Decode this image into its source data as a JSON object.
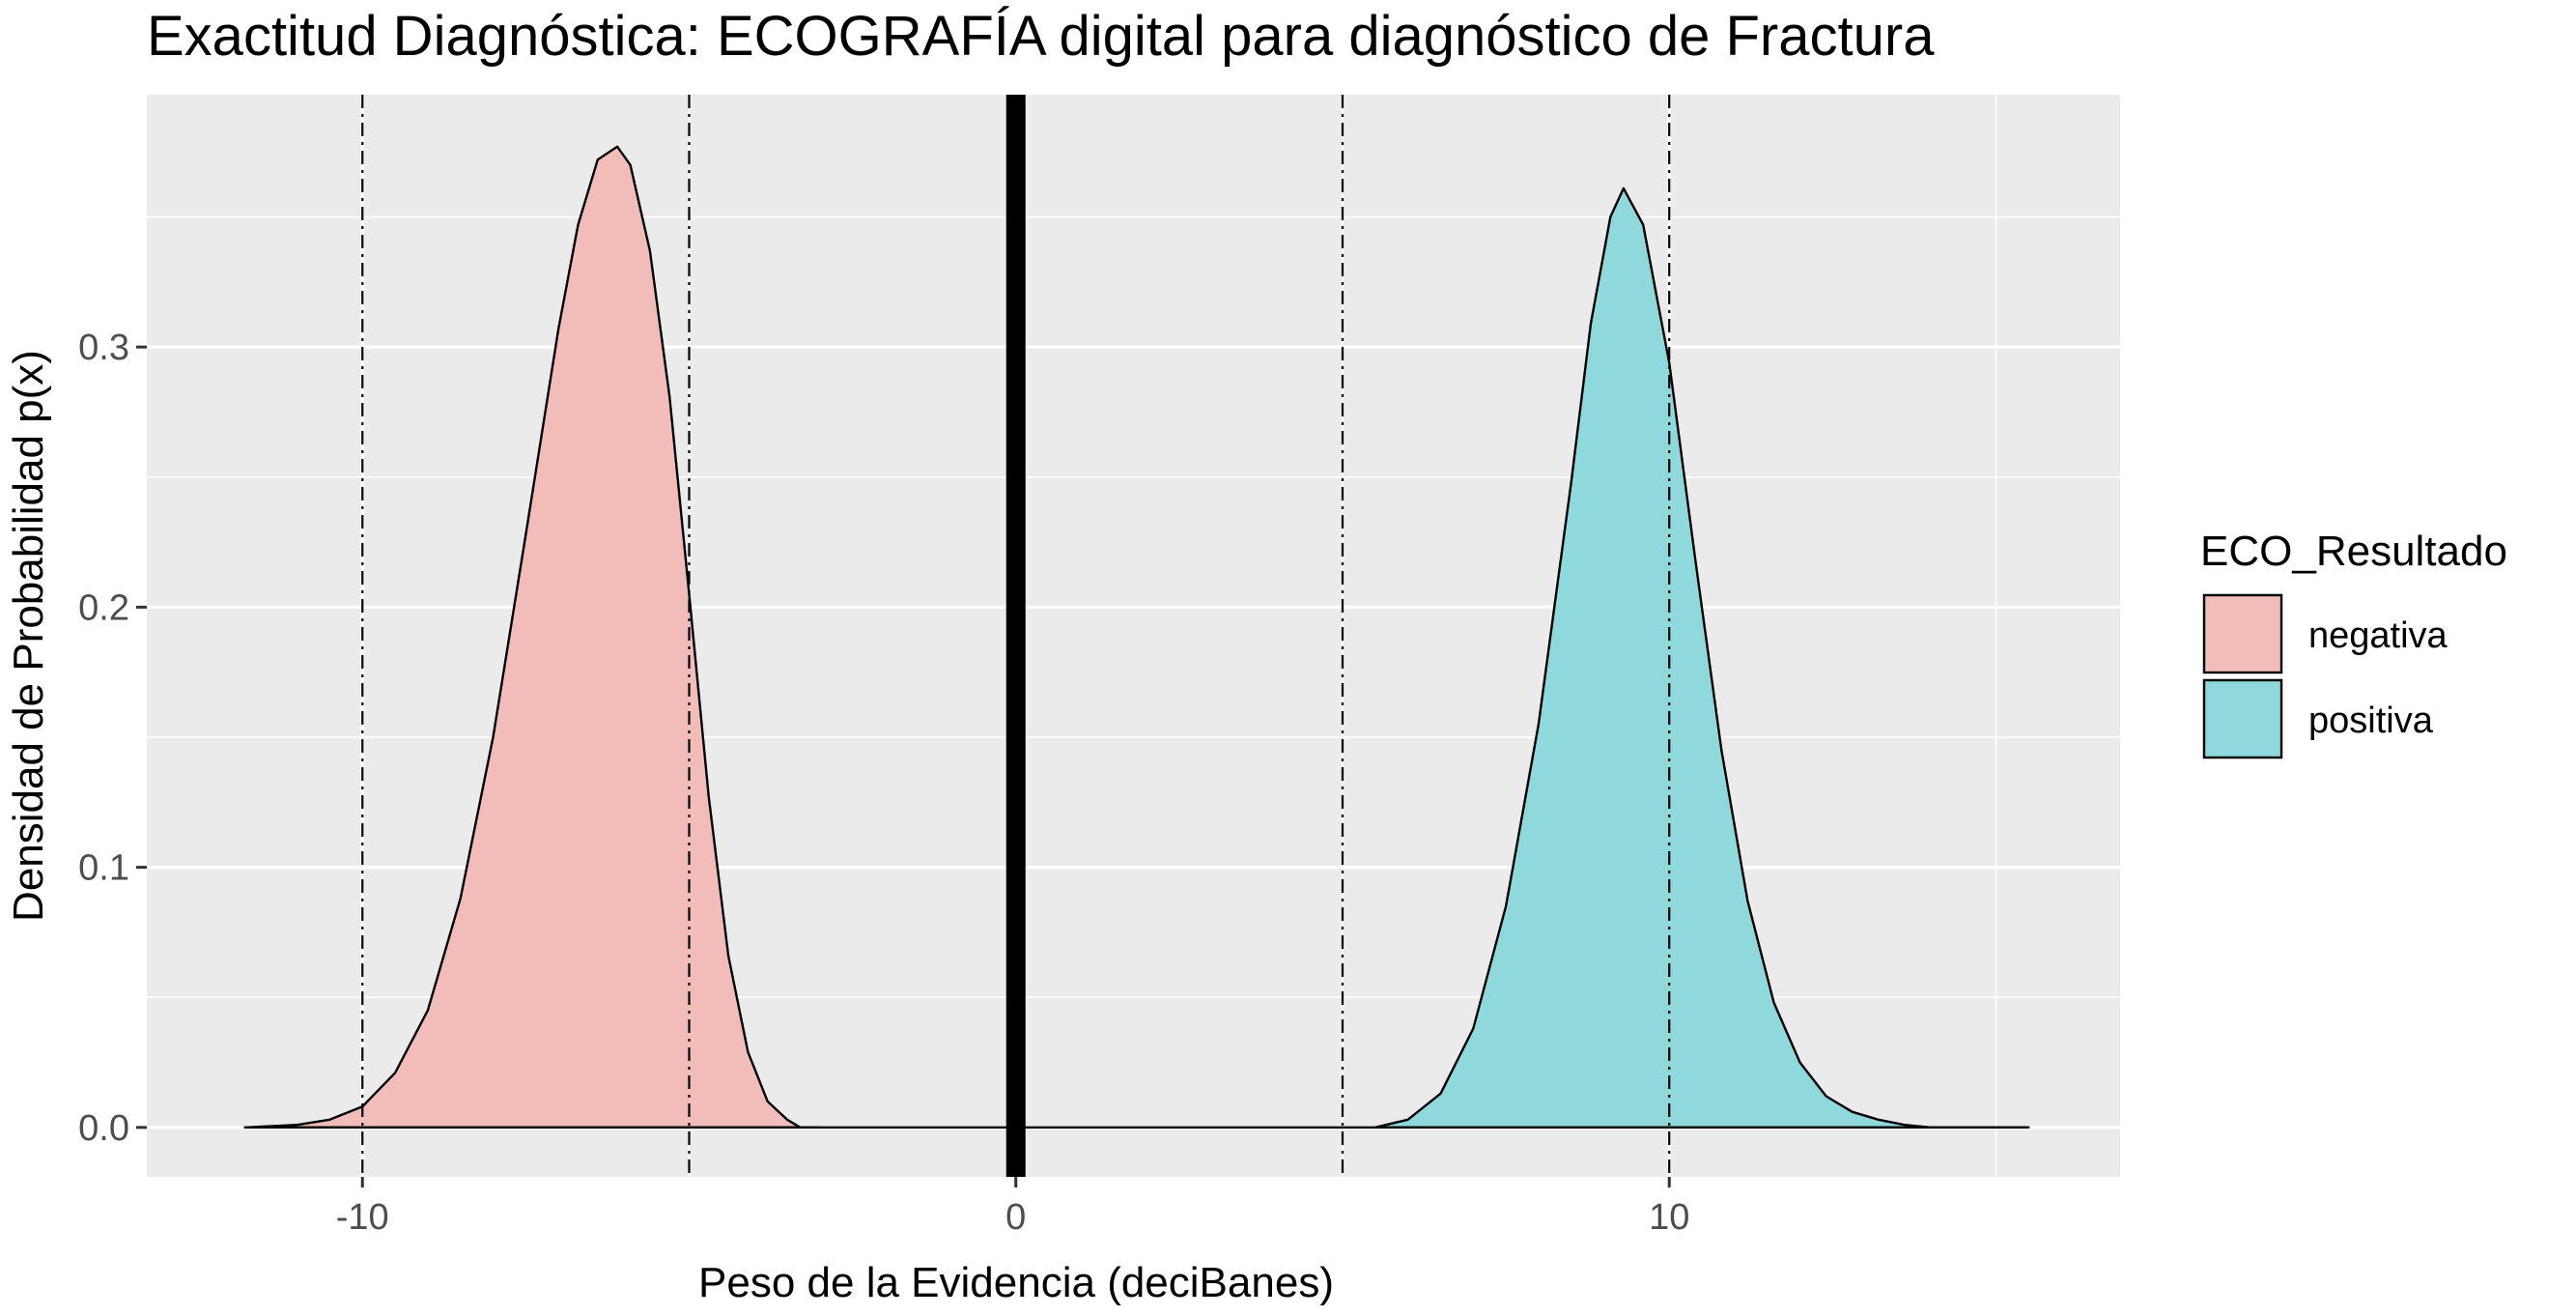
{
  "chart_data": {
    "type": "area",
    "title": "Exactitud Diagnóstica: ECOGRAFÍA digital para diagnóstico de Fractura",
    "xlabel": "Peso de la Evidencia (deciBanes)",
    "ylabel": "Densidad de Probabilidad p(x)",
    "xlim": [
      -13.3,
      16.9
    ],
    "ylim": [
      -0.019,
      0.397
    ],
    "x_ticks": [
      -10,
      0,
      10
    ],
    "x_tick_labels": [
      "-10",
      "0",
      "10"
    ],
    "y_ticks": [
      0.0,
      0.1,
      0.2,
      0.3
    ],
    "y_tick_labels": [
      "0.0",
      "0.1",
      "0.2",
      "0.3"
    ],
    "x_minor_gridlines": [
      -5,
      5,
      15
    ],
    "y_minor_gridlines": [
      0.05,
      0.15,
      0.25,
      0.35
    ],
    "grid": true,
    "panel_background": "#ebebeb",
    "legend": {
      "title": "ECO_Resultado",
      "position": "right",
      "entries": [
        "negativa",
        "positiva"
      ]
    },
    "reference_lines": {
      "solid_vertical": {
        "x": 0,
        "color": "#000000"
      },
      "dotdash_vertical": [
        -10,
        -5,
        5,
        10
      ]
    },
    "x_range_baseline": [
      -11.8,
      15.5
    ],
    "series": [
      {
        "name": "negativa",
        "color": "#f8766d",
        "fill": "#f2bcb9",
        "x": [
          -11.8,
          -11.0,
          -10.5,
          -10.0,
          -9.5,
          -9.0,
          -8.5,
          -8.0,
          -7.5,
          -7.0,
          -6.7,
          -6.4,
          -6.1,
          -5.9,
          -5.6,
          -5.3,
          -5.0,
          -4.7,
          -4.4,
          -4.1,
          -3.8,
          -3.5,
          -3.3,
          -3.0
        ],
        "y": [
          0.0,
          0.001,
          0.003,
          0.008,
          0.021,
          0.045,
          0.088,
          0.15,
          0.228,
          0.307,
          0.347,
          0.372,
          0.377,
          0.37,
          0.337,
          0.281,
          0.205,
          0.127,
          0.066,
          0.029,
          0.01,
          0.003,
          0.0,
          0.0
        ]
      },
      {
        "name": "positiva",
        "color": "#00bfc4",
        "fill": "#8fd9dc",
        "x": [
          5.5,
          6.0,
          6.5,
          7.0,
          7.5,
          8.0,
          8.5,
          8.8,
          9.1,
          9.3,
          9.6,
          10.0,
          10.4,
          10.8,
          11.2,
          11.6,
          12.0,
          12.4,
          12.8,
          13.2,
          13.6,
          14.0,
          14.5,
          15.5
        ],
        "y": [
          0.0,
          0.003,
          0.013,
          0.038,
          0.085,
          0.155,
          0.248,
          0.309,
          0.35,
          0.361,
          0.347,
          0.294,
          0.218,
          0.145,
          0.087,
          0.048,
          0.025,
          0.012,
          0.006,
          0.003,
          0.001,
          0.0,
          0.0,
          0.0
        ]
      }
    ]
  }
}
